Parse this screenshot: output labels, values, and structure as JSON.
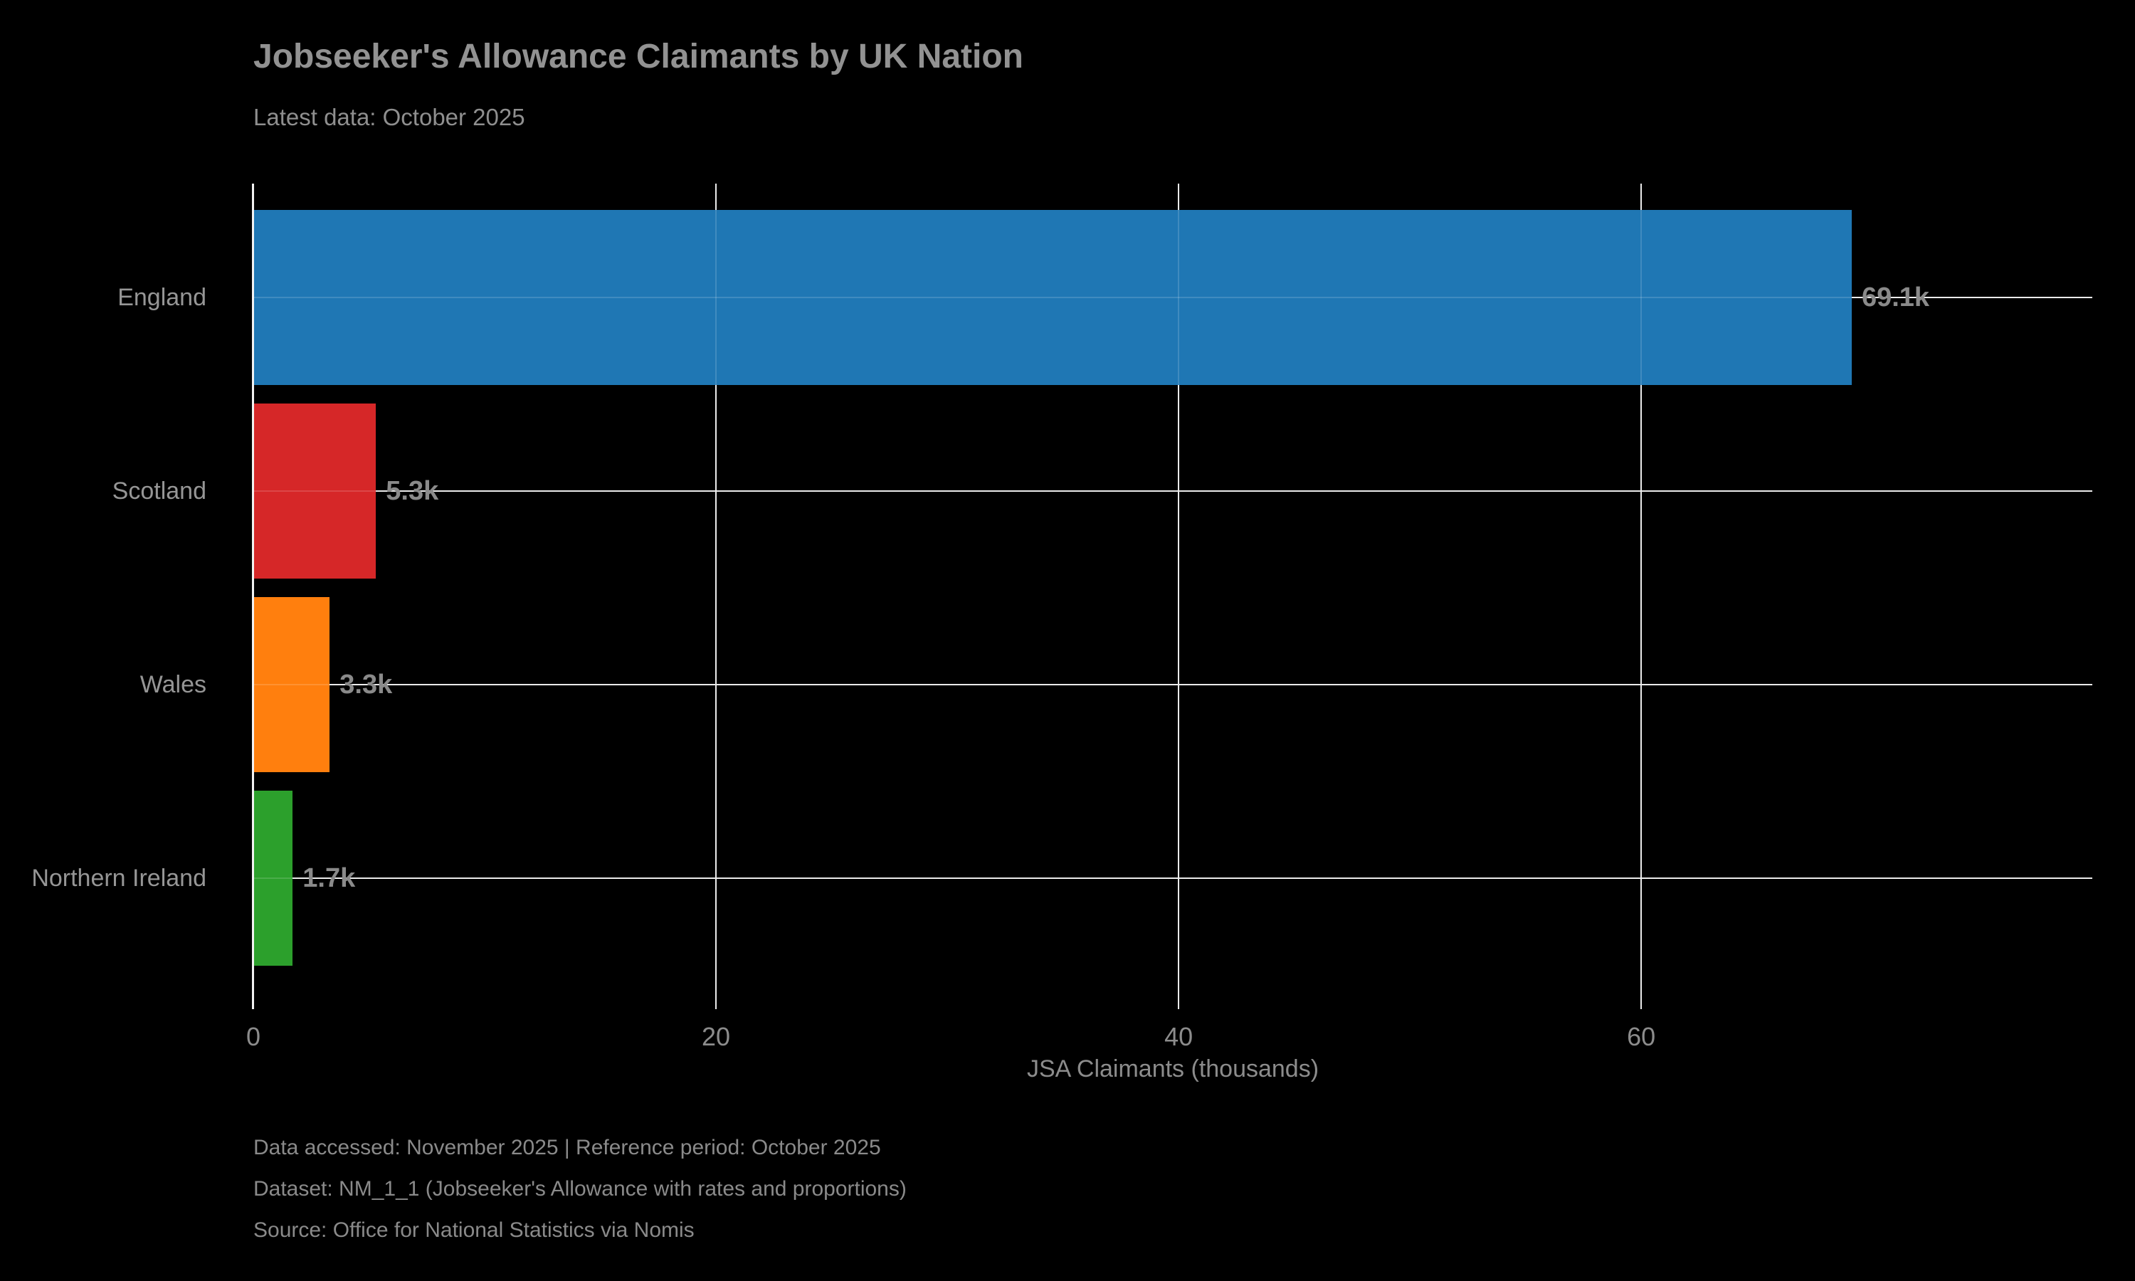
{
  "header": {
    "title": "Jobseeker's Allowance Claimants by UK Nation",
    "subtitle": "Latest data: October 2025"
  },
  "chart_data": {
    "type": "bar",
    "orientation": "horizontal",
    "title": "Jobseeker's Allowance Claimants by UK Nation",
    "subtitle": "Latest data: October 2025",
    "categories": [
      "England",
      "Scotland",
      "Wales",
      "Northern Ireland"
    ],
    "values_thousands": [
      69.1,
      5.3,
      3.3,
      1.7
    ],
    "value_labels": [
      "69.1k",
      "5.3k",
      "3.3k",
      "1.7k"
    ],
    "bar_colors": [
      "#1f77b4",
      "#d62728",
      "#ff7f0e",
      "#2ca02c"
    ],
    "xlabel": "JSA Claimants (thousands)",
    "ylabel": "",
    "xticks": [
      0,
      20,
      40,
      60
    ],
    "xlim": [
      0,
      79.5
    ],
    "grid": true,
    "legend": "none",
    "background_color": "#000000",
    "text_color": "#8f8f8f",
    "gridline_color": "#e8e8e8"
  },
  "footer": {
    "lines": [
      "Data accessed: November 2025 | Reference period: October 2025",
      "Dataset: NM_1_1 (Jobseeker's Allowance with rates and proportions)",
      "Source: Office for National Statistics via Nomis"
    ]
  }
}
